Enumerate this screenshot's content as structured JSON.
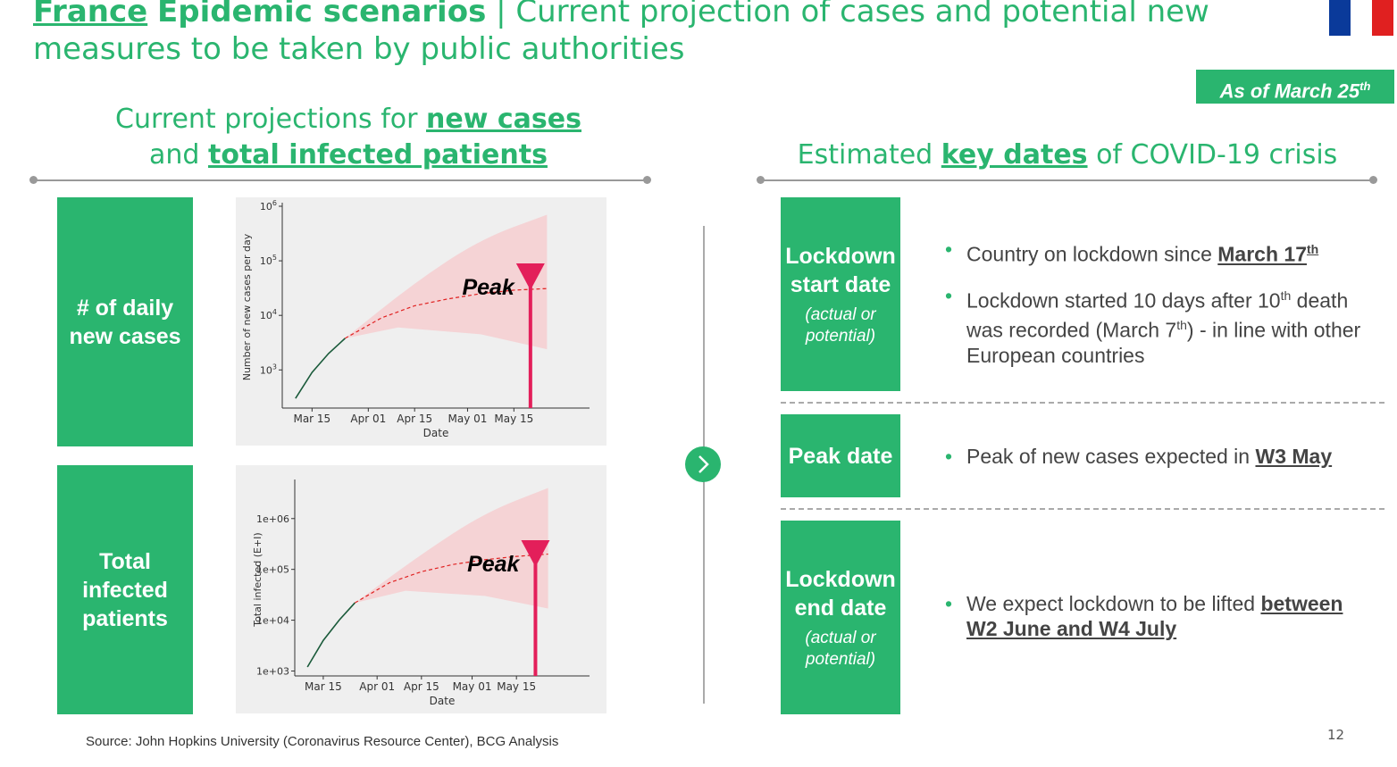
{
  "header": {
    "title_country": "France",
    "title_part1": "Epidemic scenarios",
    "title_sep": " | ",
    "title_rest": "Current projection of cases and potential new",
    "title_line2": "measures to be taken by public authorities",
    "as_of": "As of March 25",
    "as_of_sup": "th",
    "flag_colors": [
      "#0a3a9a",
      "#ffffff",
      "#e02020"
    ]
  },
  "left": {
    "heading_line1_pre": "Current projections for ",
    "heading_line1_u": "new cases",
    "heading_line2_pre": "and ",
    "heading_line2_u": "total infected patients",
    "row1_label": "# of daily new cases",
    "row2_label": "Total infected patients"
  },
  "right": {
    "heading_pre": "Estimated ",
    "heading_u": "key dates",
    "heading_post": " of COVID-19 crisis",
    "box1_title": "Lockdown start date",
    "box1_sub": "(actual or potential)",
    "box2_title": "Peak date",
    "box3_title": "Lockdown end date",
    "box3_sub": "(actual or potential)",
    "b1_pre": "Country on lockdown since ",
    "b1_u": "March 17",
    "b1_sup": "th",
    "b2_pre": "Lockdown started 10 days after 10",
    "b2_sup": "th",
    "b2_mid": " death was recorded (March 7",
    "b2_sup2": "th",
    "b2_post": ") - in line with other European countries",
    "b3_pre": "Peak of new cases expected in ",
    "b3_u": "W3 May",
    "b4_pre": "We expect lockdown to be lifted ",
    "b4_u": "between W2 June and W4 July"
  },
  "footer": {
    "source": "Source: John Hopkins University (Coronavirus Resource Center), BCG Analysis",
    "page": "12"
  },
  "colors": {
    "accent": "#2ab56f",
    "peak": "#e31f5a",
    "band": "#f5cfd2"
  },
  "chart_data": [
    {
      "type": "line",
      "ylabel": "Number of new cases per day",
      "xlabel": "Date",
      "yscale": "log",
      "ylim": [
        200,
        1000000
      ],
      "x_ticks": [
        "Mar 15",
        "Apr 01",
        "Apr 15",
        "May 01",
        "May 15"
      ],
      "y_ticks": [
        "10^3",
        "10^4",
        "10^5",
        "10^6"
      ],
      "y_tick_values": [
        1000,
        10000,
        100000,
        1000000
      ],
      "x_range": [
        "2020-03-06",
        "2020-06-02"
      ],
      "observed": {
        "x": [
          "2020-03-10",
          "2020-03-15",
          "2020-03-20",
          "2020-03-25"
        ],
        "y": [
          300,
          900,
          2000,
          3800
        ]
      },
      "projection": {
        "x": [
          "2020-03-25",
          "2020-04-05",
          "2020-04-15",
          "2020-04-25",
          "2020-05-05",
          "2020-05-15",
          "2020-05-25"
        ],
        "y": [
          3800,
          9000,
          15000,
          20000,
          25000,
          29000,
          31000
        ]
      },
      "band_upper": {
        "x": [
          "2020-03-25",
          "2020-04-15",
          "2020-05-05",
          "2020-05-25"
        ],
        "y": [
          3800,
          40000,
          250000,
          700000
        ]
      },
      "band_lower": {
        "x": [
          "2020-03-25",
          "2020-04-10",
          "2020-05-05",
          "2020-05-25"
        ],
        "y": [
          3800,
          6000,
          4500,
          2400
        ]
      },
      "peak": {
        "x": "2020-05-20",
        "label": "Peak"
      }
    },
    {
      "type": "line",
      "ylabel": "Total infected (E+I)",
      "xlabel": "Date",
      "yscale": "log",
      "ylim": [
        800,
        5000000
      ],
      "x_ticks": [
        "Mar 15",
        "Apr 01",
        "Apr 15",
        "May 01",
        "May 15"
      ],
      "y_ticks": [
        "1e+03",
        "1e+04",
        "1e+05",
        "1e+06"
      ],
      "y_tick_values": [
        1000,
        10000,
        100000,
        1000000
      ],
      "x_range": [
        "2020-03-06",
        "2020-06-02"
      ],
      "observed": {
        "x": [
          "2020-03-10",
          "2020-03-15",
          "2020-03-20",
          "2020-03-25"
        ],
        "y": [
          1200,
          4000,
          10000,
          22000
        ]
      },
      "projection": {
        "x": [
          "2020-03-25",
          "2020-04-05",
          "2020-04-15",
          "2020-04-25",
          "2020-05-05",
          "2020-05-15",
          "2020-05-25"
        ],
        "y": [
          22000,
          55000,
          90000,
          125000,
          155000,
          180000,
          200000
        ]
      },
      "band_upper": {
        "x": [
          "2020-03-25",
          "2020-04-15",
          "2020-05-05",
          "2020-05-25"
        ],
        "y": [
          22000,
          200000,
          1300000,
          4000000
        ]
      },
      "band_lower": {
        "x": [
          "2020-03-25",
          "2020-04-10",
          "2020-05-05",
          "2020-05-25"
        ],
        "y": [
          22000,
          38000,
          30000,
          17000
        ]
      },
      "peak": {
        "x": "2020-05-21",
        "label": "Peak"
      }
    }
  ]
}
